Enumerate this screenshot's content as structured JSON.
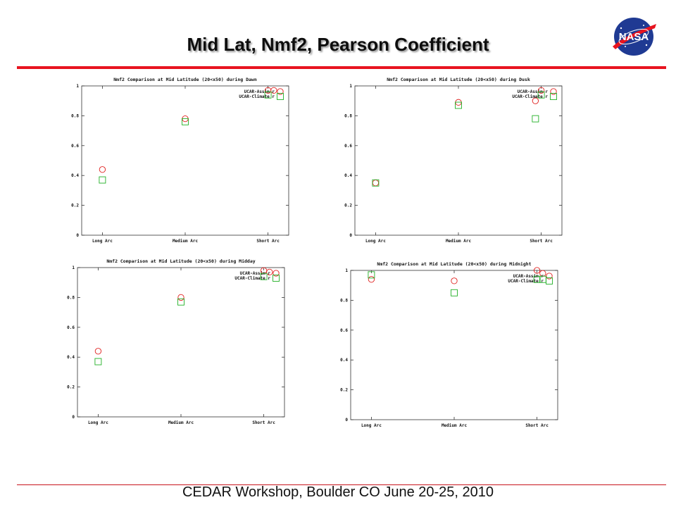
{
  "slide": {
    "title": "Mid Lat, Nmf2, Pearson Coefficient",
    "footer": "CEDAR Workshop, Boulder CO June 20-25, 2010",
    "accent_color": "#e8141f",
    "logo": "nasa-meatball-logo",
    "logo_text": "NASA"
  },
  "chart_data": [
    {
      "type": "scatter",
      "title": "Nmf2 Comparison at Mid Latitude (20<x50) during Dawn",
      "categories": [
        "Long Arc",
        "Medium Arc",
        "Short Arc"
      ],
      "ylim": [
        0,
        1
      ],
      "yticks": [
        "0",
        "0.2",
        "0.4",
        "0.6",
        "0.8",
        "1"
      ],
      "legend_position": "top-right",
      "series": [
        {
          "name": "UCAR-Assim r",
          "marker": "circle",
          "color": "#e0201e",
          "values": [
            0.44,
            0.78,
            0.97
          ],
          "extra": [
            {
              "x": 2.07,
              "y": 0.97
            }
          ]
        },
        {
          "name": "UCAR-Climate r",
          "marker": "square",
          "color": "#22b026",
          "values": [
            0.37,
            0.76,
            0.94
          ],
          "extra": []
        }
      ]
    },
    {
      "type": "scatter",
      "title": "Nmf2 Comparison at Mid Latitude (20<x50) during Dusk",
      "categories": [
        "Long Arc",
        "Medium Arc",
        "Short Arc"
      ],
      "ylim": [
        0,
        1
      ],
      "yticks": [
        "0",
        "0.2",
        "0.4",
        "0.6",
        "0.8",
        "1"
      ],
      "legend_position": "top-right",
      "series": [
        {
          "name": "UCAR-Assim r",
          "marker": "circle",
          "color": "#e0201e",
          "values": [
            0.35,
            0.89,
            0.97
          ],
          "extra": [
            {
              "x": 1.93,
              "y": 0.9
            }
          ]
        },
        {
          "name": "UCAR-Climate r",
          "marker": "square",
          "color": "#22b026",
          "values": [
            0.35,
            0.87,
            0.94
          ],
          "extra": [
            {
              "x": 1.93,
              "y": 0.78
            }
          ]
        }
      ]
    },
    {
      "type": "scatter",
      "title": "Nmf2 Comparison at Mid Latitude (20<x50) during Midday",
      "categories": [
        "Long Arc",
        "Medium Arc",
        "Short Arc"
      ],
      "ylim": [
        0,
        1
      ],
      "yticks": [
        "0",
        "0.2",
        "0.4",
        "0.6",
        "0.8",
        "1"
      ],
      "legend_position": "top-right",
      "series": [
        {
          "name": "UCAR-Assim r",
          "marker": "circle",
          "color": "#e0201e",
          "values": [
            0.44,
            0.8,
            0.98
          ],
          "extra": [
            {
              "x": 2.07,
              "y": 0.97
            }
          ]
        },
        {
          "name": "UCAR-Climate r",
          "marker": "square",
          "color": "#22b026",
          "values": [
            0.37,
            0.77,
            0.94
          ],
          "extra": []
        }
      ]
    },
    {
      "type": "scatter",
      "title": "Nmf2 Comparison at Mid Latitude (20<x50) during Midnight",
      "categories": [
        "Long Arc",
        "Medium Arc",
        "Short Arc"
      ],
      "ylim": [
        0,
        1
      ],
      "yticks": [
        "0",
        "0.2",
        "0.4",
        "0.6",
        "0.8",
        "1"
      ],
      "legend_position": "top-right",
      "series": [
        {
          "name": "UCAR-Assim r",
          "marker": "circle",
          "color": "#e0201e",
          "values": [
            0.94,
            0.93,
            1.0
          ],
          "extra": [
            {
              "x": 2.07,
              "y": 0.98
            }
          ]
        },
        {
          "name": "UCAR-Climate r",
          "marker": "square",
          "color": "#22b026",
          "values": [
            0.97,
            0.85,
            0.94
          ],
          "extra": [
            {
              "x": 2.07,
              "y": 0.94
            }
          ]
        }
      ]
    }
  ]
}
